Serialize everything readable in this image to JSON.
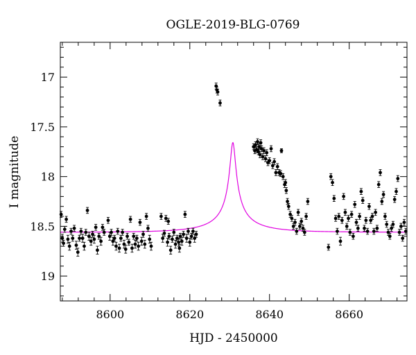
{
  "chart_data": {
    "type": "scatter",
    "title": "OGLE-2019-BLG-0769",
    "xlabel": "HJD - 2450000",
    "ylabel": "I magnitude",
    "xlim": [
      8587.5,
      8674.5
    ],
    "ylim": [
      19.25,
      16.65
    ],
    "y_inverted": true,
    "xticks": [
      "8600",
      "8620",
      "8640",
      "8660"
    ],
    "xtick_values": [
      8600,
      8620,
      8640,
      8660
    ],
    "yticks": [
      "17",
      "17.5",
      "18",
      "18.5",
      "19"
    ],
    "ytick_values": [
      17,
      17.5,
      18,
      18.5,
      19
    ],
    "model_color": "#e000e0",
    "point_color": "#000000",
    "model": {
      "name": "",
      "t0": 8630.8,
      "tE": 14.4,
      "u0": 0.045,
      "fs": 0.061,
      "I_base": 18.56
    },
    "series": [
      {
        "name": "",
        "points": [
          [
            8587.7,
            18.38,
            0.03
          ],
          [
            8588.0,
            18.62,
            0.04
          ],
          [
            8588.3,
            18.67,
            0.03
          ],
          [
            8588.6,
            18.53,
            0.03
          ],
          [
            8589.0,
            18.43,
            0.03
          ],
          [
            8589.4,
            18.63,
            0.04
          ],
          [
            8589.8,
            18.7,
            0.04
          ],
          [
            8590.2,
            18.55,
            0.03
          ],
          [
            8590.6,
            18.62,
            0.03
          ],
          [
            8591.0,
            18.52,
            0.03
          ],
          [
            8591.5,
            18.69,
            0.04
          ],
          [
            8591.9,
            18.76,
            0.04
          ],
          [
            8592.3,
            18.62,
            0.03
          ],
          [
            8592.7,
            18.55,
            0.03
          ],
          [
            8593.1,
            18.62,
            0.04
          ],
          [
            8593.5,
            18.7,
            0.04
          ],
          [
            8593.9,
            18.56,
            0.03
          ],
          [
            8594.3,
            18.34,
            0.03
          ],
          [
            8594.7,
            18.6,
            0.04
          ],
          [
            8595.2,
            18.65,
            0.04
          ],
          [
            8595.6,
            18.58,
            0.03
          ],
          [
            8596.0,
            18.63,
            0.04
          ],
          [
            8596.4,
            18.51,
            0.03
          ],
          [
            8596.8,
            18.74,
            0.04
          ],
          [
            8597.2,
            18.6,
            0.03
          ],
          [
            8597.7,
            18.65,
            0.04
          ],
          [
            8598.1,
            18.51,
            0.03
          ],
          [
            8598.5,
            18.56,
            0.03
          ],
          [
            8599.5,
            18.44,
            0.03
          ],
          [
            8599.9,
            18.6,
            0.04
          ],
          [
            8600.3,
            18.56,
            0.03
          ],
          [
            8600.7,
            18.65,
            0.04
          ],
          [
            8601.1,
            18.62,
            0.03
          ],
          [
            8601.5,
            18.7,
            0.04
          ],
          [
            8601.9,
            18.55,
            0.03
          ],
          [
            8602.3,
            18.72,
            0.04
          ],
          [
            8602.7,
            18.62,
            0.03
          ],
          [
            8603.1,
            18.56,
            0.03
          ],
          [
            8603.5,
            18.68,
            0.04
          ],
          [
            8603.9,
            18.73,
            0.04
          ],
          [
            8604.3,
            18.6,
            0.03
          ],
          [
            8604.7,
            18.66,
            0.03
          ],
          [
            8605.1,
            18.43,
            0.03
          ],
          [
            8605.5,
            18.72,
            0.04
          ],
          [
            8605.9,
            18.6,
            0.03
          ],
          [
            8606.3,
            18.68,
            0.04
          ],
          [
            8606.7,
            18.62,
            0.03
          ],
          [
            8607.1,
            18.7,
            0.04
          ],
          [
            8607.5,
            18.46,
            0.03
          ],
          [
            8607.9,
            18.65,
            0.04
          ],
          [
            8608.3,
            18.58,
            0.03
          ],
          [
            8608.7,
            18.68,
            0.04
          ],
          [
            8609.1,
            18.4,
            0.03
          ],
          [
            8609.5,
            18.52,
            0.03
          ],
          [
            8609.9,
            18.63,
            0.04
          ],
          [
            8610.3,
            18.7,
            0.04
          ],
          [
            8612.8,
            18.4,
            0.03
          ],
          [
            8613.2,
            18.62,
            0.04
          ],
          [
            8613.6,
            18.57,
            0.03
          ],
          [
            8614.0,
            18.42,
            0.03
          ],
          [
            8614.4,
            18.66,
            0.04
          ],
          [
            8614.8,
            18.6,
            0.03
          ],
          [
            8615.2,
            18.74,
            0.04
          ],
          [
            8615.6,
            18.63,
            0.03
          ],
          [
            8616.0,
            18.56,
            0.03
          ],
          [
            8616.4,
            18.68,
            0.04
          ],
          [
            8616.8,
            18.62,
            0.03
          ],
          [
            8617.2,
            18.66,
            0.04
          ],
          [
            8617.6,
            18.6,
            0.03
          ],
          [
            8618.0,
            18.65,
            0.04
          ],
          [
            8618.4,
            18.58,
            0.03
          ],
          [
            8618.8,
            18.38,
            0.03
          ],
          [
            8619.2,
            18.62,
            0.04
          ],
          [
            8619.6,
            18.55,
            0.03
          ],
          [
            8620.0,
            18.66,
            0.04
          ],
          [
            8620.4,
            18.6,
            0.03
          ],
          [
            8620.8,
            18.55,
            0.03
          ],
          [
            8621.2,
            18.62,
            0.04
          ],
          [
            8621.6,
            18.58,
            0.03
          ],
          [
            8614.6,
            18.45,
            0.03
          ],
          [
            8617.4,
            18.72,
            0.04
          ],
          [
            8626.6,
            17.09,
            0.03
          ],
          [
            8626.8,
            17.13,
            0.03
          ],
          [
            8627.0,
            17.15,
            0.03
          ],
          [
            8627.6,
            17.26,
            0.03
          ],
          [
            8636.0,
            17.7,
            0.03
          ],
          [
            8636.3,
            17.74,
            0.03
          ],
          [
            8636.5,
            17.68,
            0.03
          ],
          [
            8636.8,
            17.73,
            0.03
          ],
          [
            8637.0,
            17.65,
            0.03
          ],
          [
            8637.2,
            17.75,
            0.03
          ],
          [
            8637.4,
            17.7,
            0.03
          ],
          [
            8637.6,
            17.78,
            0.03
          ],
          [
            8637.8,
            17.66,
            0.03
          ],
          [
            8638.0,
            17.72,
            0.03
          ],
          [
            8638.3,
            17.8,
            0.03
          ],
          [
            8638.6,
            17.74,
            0.03
          ],
          [
            8639.0,
            17.82,
            0.03
          ],
          [
            8639.3,
            17.76,
            0.03
          ],
          [
            8639.6,
            17.86,
            0.03
          ],
          [
            8640.0,
            17.84,
            0.03
          ],
          [
            8640.4,
            17.72,
            0.03
          ],
          [
            8640.8,
            17.89,
            0.03
          ],
          [
            8641.2,
            17.85,
            0.03
          ],
          [
            8641.6,
            17.96,
            0.03
          ],
          [
            8642.0,
            17.9,
            0.03
          ],
          [
            8642.4,
            17.96,
            0.03
          ],
          [
            8642.8,
            17.97,
            0.03
          ],
          [
            8643.0,
            17.74,
            0.02
          ],
          [
            8643.4,
            18.0,
            0.03
          ],
          [
            8643.8,
            18.08,
            0.03
          ],
          [
            8644.0,
            18.06,
            0.03
          ],
          [
            8644.2,
            18.14,
            0.03
          ],
          [
            8644.5,
            18.25,
            0.03
          ],
          [
            8644.8,
            18.3,
            0.03
          ],
          [
            8645.2,
            18.38,
            0.03
          ],
          [
            8645.6,
            18.42,
            0.03
          ],
          [
            8646.0,
            18.5,
            0.03
          ],
          [
            8646.4,
            18.46,
            0.03
          ],
          [
            8646.8,
            18.55,
            0.03
          ],
          [
            8647.2,
            18.36,
            0.03
          ],
          [
            8647.6,
            18.5,
            0.03
          ],
          [
            8648.0,
            18.45,
            0.03
          ],
          [
            8648.4,
            18.52,
            0.03
          ],
          [
            8648.8,
            18.56,
            0.03
          ],
          [
            8649.2,
            18.4,
            0.03
          ],
          [
            8649.6,
            18.25,
            0.03
          ],
          [
            8654.8,
            18.71,
            0.03
          ],
          [
            8655.4,
            18.0,
            0.03
          ],
          [
            8655.8,
            18.06,
            0.03
          ],
          [
            8656.2,
            18.22,
            0.03
          ],
          [
            8656.6,
            18.42,
            0.03
          ],
          [
            8657.0,
            18.55,
            0.03
          ],
          [
            8657.4,
            18.4,
            0.03
          ],
          [
            8657.8,
            18.65,
            0.04
          ],
          [
            8658.2,
            18.44,
            0.03
          ],
          [
            8658.6,
            18.2,
            0.03
          ],
          [
            8659.0,
            18.36,
            0.03
          ],
          [
            8659.4,
            18.5,
            0.03
          ],
          [
            8659.8,
            18.42,
            0.03
          ],
          [
            8660.2,
            18.56,
            0.03
          ],
          [
            8660.6,
            18.38,
            0.03
          ],
          [
            8661.0,
            18.6,
            0.03
          ],
          [
            8661.4,
            18.28,
            0.03
          ],
          [
            8661.8,
            18.46,
            0.03
          ],
          [
            8662.2,
            18.52,
            0.03
          ],
          [
            8662.6,
            18.4,
            0.03
          ],
          [
            8663.0,
            18.15,
            0.03
          ],
          [
            8663.4,
            18.24,
            0.03
          ],
          [
            8663.8,
            18.52,
            0.03
          ],
          [
            8664.2,
            18.44,
            0.03
          ],
          [
            8664.6,
            18.55,
            0.03
          ],
          [
            8665.0,
            18.3,
            0.03
          ],
          [
            8665.4,
            18.44,
            0.03
          ],
          [
            8665.8,
            18.4,
            0.03
          ],
          [
            8666.2,
            18.55,
            0.03
          ],
          [
            8666.6,
            18.36,
            0.03
          ],
          [
            8667.0,
            18.52,
            0.03
          ],
          [
            8667.4,
            18.08,
            0.03
          ],
          [
            8667.8,
            17.96,
            0.03
          ],
          [
            8668.2,
            18.25,
            0.03
          ],
          [
            8668.6,
            18.18,
            0.03
          ],
          [
            8669.0,
            18.4,
            0.03
          ],
          [
            8669.4,
            18.48,
            0.03
          ],
          [
            8669.8,
            18.56,
            0.03
          ],
          [
            8670.2,
            18.6,
            0.03
          ],
          [
            8670.6,
            18.52,
            0.03
          ],
          [
            8671.0,
            18.48,
            0.03
          ],
          [
            8671.4,
            18.23,
            0.03
          ],
          [
            8671.8,
            18.15,
            0.03
          ],
          [
            8672.2,
            18.02,
            0.03
          ],
          [
            8672.6,
            18.56,
            0.03
          ],
          [
            8673.0,
            18.5,
            0.03
          ],
          [
            8673.4,
            18.62,
            0.03
          ],
          [
            8673.8,
            18.46,
            0.03
          ],
          [
            8674.2,
            18.55,
            0.03
          ]
        ]
      }
    ]
  }
}
